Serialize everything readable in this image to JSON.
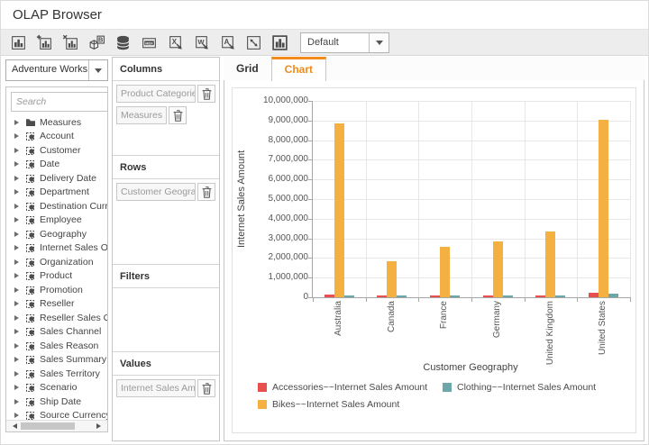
{
  "header": {
    "title": "OLAP Browser"
  },
  "toolbar": {
    "icon_names": [
      "column-chart",
      "add-report",
      "remove-report",
      "rename-report-b",
      "database-connection",
      "mdx-query",
      "excel-export",
      "word-export",
      "pdf-export",
      "fullscreen",
      "chart-view"
    ],
    "report_selector": {
      "value": "Default"
    }
  },
  "sidebar": {
    "cube_selector": {
      "value": "Adventure Works"
    },
    "search": {
      "placeholder": "Search"
    },
    "tree": {
      "items": [
        {
          "label": "Measures",
          "icon": "folder"
        },
        {
          "label": "Account",
          "icon": "dimension"
        },
        {
          "label": "Customer",
          "icon": "dimension"
        },
        {
          "label": "Date",
          "icon": "dimension"
        },
        {
          "label": "Delivery Date",
          "icon": "dimension"
        },
        {
          "label": "Department",
          "icon": "dimension"
        },
        {
          "label": "Destination Currency",
          "icon": "dimension"
        },
        {
          "label": "Employee",
          "icon": "dimension"
        },
        {
          "label": "Geography",
          "icon": "dimension"
        },
        {
          "label": "Internet Sales Order",
          "icon": "dimension"
        },
        {
          "label": "Organization",
          "icon": "dimension"
        },
        {
          "label": "Product",
          "icon": "dimension"
        },
        {
          "label": "Promotion",
          "icon": "dimension"
        },
        {
          "label": "Reseller",
          "icon": "dimension"
        },
        {
          "label": "Reseller Sales Order",
          "icon": "dimension"
        },
        {
          "label": "Sales Channel",
          "icon": "dimension"
        },
        {
          "label": "Sales Reason",
          "icon": "dimension"
        },
        {
          "label": "Sales Summary Order",
          "icon": "dimension"
        },
        {
          "label": "Sales Territory",
          "icon": "dimension"
        },
        {
          "label": "Scenario",
          "icon": "dimension"
        },
        {
          "label": "Ship Date",
          "icon": "dimension"
        },
        {
          "label": "Source Currency",
          "icon": "dimension"
        }
      ]
    }
  },
  "builder": {
    "columns": {
      "label": "Columns",
      "chips": [
        "Product Categories",
        "Measures"
      ]
    },
    "rows": {
      "label": "Rows",
      "chips": [
        "Customer Geography"
      ]
    },
    "filters": {
      "label": "Filters",
      "chips": []
    },
    "values": {
      "label": "Values",
      "chips": [
        "Internet Sales Amount"
      ]
    }
  },
  "tabs": [
    {
      "label": "Grid",
      "active": false
    },
    {
      "label": "Chart",
      "active": true
    }
  ],
  "colors": {
    "accent_orange": "#f28a1c",
    "bar_red": "#e8504e",
    "bar_orange": "#f4b040",
    "bar_teal": "#6ba6a9"
  },
  "chart_data": {
    "type": "bar",
    "title": "",
    "categories": [
      "Australia",
      "Canada",
      "France",
      "Germany",
      "United Kingdom",
      "United States"
    ],
    "series": [
      {
        "name": "Accessories~~Internet Sales Amount",
        "color": "#e8504e",
        "values": [
          140000,
          105000,
          65000,
          60000,
          95000,
          235000
        ]
      },
      {
        "name": "Bikes~~Internet Sales Amount",
        "color": "#f4b040",
        "values": [
          8850000,
          1820000,
          2550000,
          2850000,
          3350000,
          9060000
        ]
      },
      {
        "name": "Clothing~~Internet Sales Amount",
        "color": "#6ba6a9",
        "values": [
          70000,
          100000,
          50000,
          50000,
          75000,
          190000
        ]
      }
    ],
    "legend_order": [
      0,
      2,
      1
    ],
    "xlabel": "Customer Geography",
    "ylabel": "Internet Sales Amount",
    "ylim": [
      0,
      10000000
    ],
    "ytick_step": 1000000,
    "grid": true,
    "legend_position": "bottom"
  }
}
